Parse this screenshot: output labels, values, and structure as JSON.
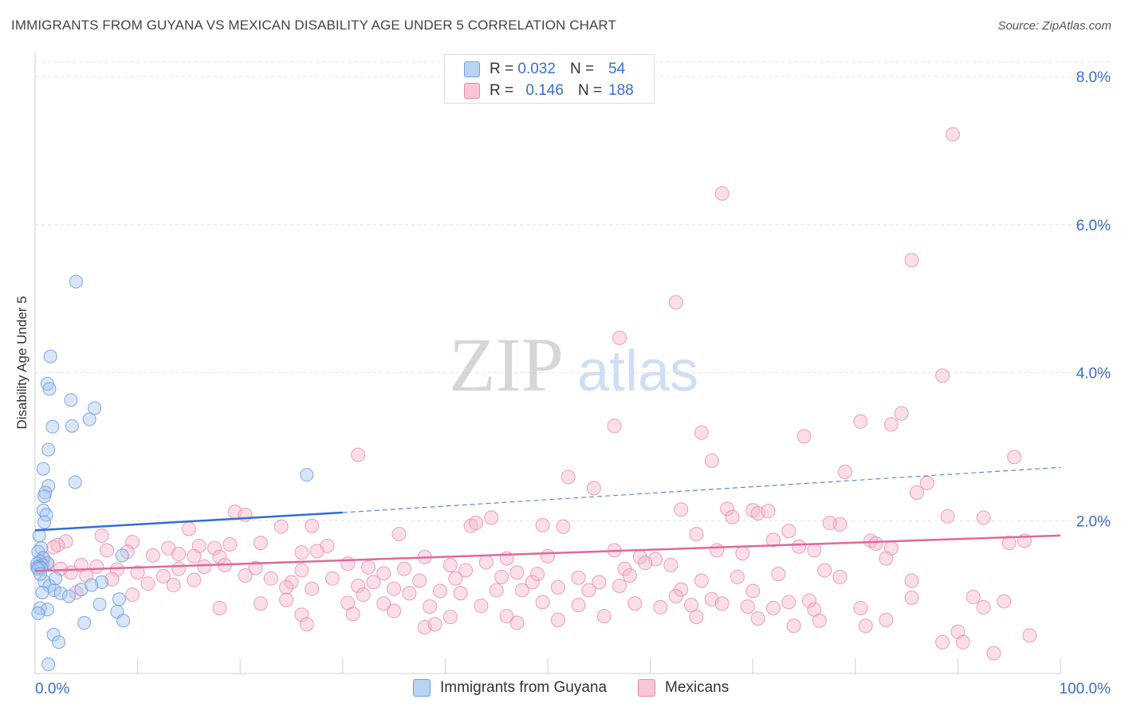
{
  "header": {
    "title": "IMMIGRANTS FROM GUYANA VS MEXICAN DISABILITY AGE UNDER 5 CORRELATION CHART",
    "source": "Source: ZipAtlas.com"
  },
  "watermark": {
    "zip": "ZIP",
    "atlas": "atlas"
  },
  "legend": {
    "rows": [
      {
        "r_label": "R =",
        "r_value": "0.032",
        "n_label": "N =",
        "n_value": "54"
      },
      {
        "r_label": "R =",
        "r_value": "0.146",
        "n_label": "N =",
        "n_value": "188"
      }
    ]
  },
  "colors": {
    "guyana_fill": "#a8c8f0",
    "guyana_stroke": "#6f9fe0",
    "guyana_line": "#2f6fd0",
    "mexican_fill": "#f5b8cc",
    "mexican_stroke": "#e98aa8",
    "mexican_line": "#e0689a",
    "tick_label": "#3a6fc8"
  },
  "chart_data": {
    "type": "scatter",
    "title": "IMMIGRANTS FROM GUYANA VS MEXICAN DISABILITY AGE UNDER 5 CORRELATION CHART",
    "xlabel": "",
    "ylabel": "Disability Age Under 5",
    "xlim": [
      0,
      100
    ],
    "ylim": [
      0,
      8.0
    ],
    "x_tick_labels": [
      "0.0%",
      "100.0%"
    ],
    "y_ticks": [
      2,
      4,
      6,
      8
    ],
    "y_tick_labels": [
      "2.0%",
      "4.0%",
      "6.0%",
      "8.0%"
    ],
    "grid": true,
    "legend_position": "top-center",
    "series": [
      {
        "name": "Immigrants from Guyana",
        "R": 0.032,
        "N": 54,
        "trend": {
          "x0": 0,
          "y0": 1.87,
          "x1": 30,
          "y1": 2.11,
          "dashed_to_x": 100,
          "dashed_to_y": 2.72
        },
        "points": [
          [
            4.0,
            5.23
          ],
          [
            1.5,
            4.22
          ],
          [
            1.2,
            3.85
          ],
          [
            1.4,
            3.78
          ],
          [
            3.5,
            3.63
          ],
          [
            5.8,
            3.52
          ],
          [
            5.3,
            3.37
          ],
          [
            3.6,
            3.28
          ],
          [
            1.7,
            3.27
          ],
          [
            1.3,
            2.96
          ],
          [
            0.8,
            2.7
          ],
          [
            26.5,
            2.62
          ],
          [
            3.9,
            2.52
          ],
          [
            1.3,
            2.47
          ],
          [
            1.0,
            2.38
          ],
          [
            0.9,
            2.33
          ],
          [
            0.8,
            2.14
          ],
          [
            1.1,
            2.08
          ],
          [
            0.9,
            1.98
          ],
          [
            0.4,
            1.8
          ],
          [
            0.6,
            1.63
          ],
          [
            0.3,
            1.58
          ],
          [
            0.8,
            1.5
          ],
          [
            0.5,
            1.45
          ],
          [
            1.2,
            1.43
          ],
          [
            0.2,
            1.42
          ],
          [
            0.7,
            1.4
          ],
          [
            0.4,
            1.38
          ],
          [
            0.2,
            1.37
          ],
          [
            0.6,
            1.36
          ],
          [
            0.3,
            1.35
          ],
          [
            8.5,
            1.53
          ],
          [
            0.9,
            1.18
          ],
          [
            1.4,
            1.12
          ],
          [
            1.9,
            1.06
          ],
          [
            2.5,
            1.02
          ],
          [
            0.7,
            1.03
          ],
          [
            4.5,
            1.07
          ],
          [
            6.5,
            1.17
          ],
          [
            5.5,
            1.13
          ],
          [
            8.2,
            0.94
          ],
          [
            3.3,
            0.98
          ],
          [
            6.3,
            0.87
          ],
          [
            0.5,
            0.82
          ],
          [
            1.2,
            0.8
          ],
          [
            0.3,
            0.75
          ],
          [
            8.0,
            0.77
          ],
          [
            8.6,
            0.65
          ],
          [
            4.8,
            0.62
          ],
          [
            1.8,
            0.46
          ],
          [
            2.3,
            0.36
          ],
          [
            1.3,
            0.06
          ],
          [
            0.5,
            1.28
          ],
          [
            2.0,
            1.22
          ]
        ]
      },
      {
        "name": "Mexicans",
        "R": 0.146,
        "N": 188,
        "trend": {
          "x0": 0,
          "y0": 1.32,
          "x1": 100,
          "y1": 1.8
        },
        "points": [
          [
            89.5,
            7.22
          ],
          [
            67.0,
            6.42
          ],
          [
            85.5,
            5.52
          ],
          [
            62.5,
            4.95
          ],
          [
            57.0,
            4.47
          ],
          [
            88.5,
            3.96
          ],
          [
            80.5,
            3.34
          ],
          [
            83.5,
            3.3
          ],
          [
            84.5,
            3.45
          ],
          [
            56.5,
            3.28
          ],
          [
            65.0,
            3.19
          ],
          [
            75.0,
            3.14
          ],
          [
            31.5,
            2.89
          ],
          [
            66.0,
            2.81
          ],
          [
            95.5,
            2.86
          ],
          [
            79.0,
            2.66
          ],
          [
            87.0,
            2.51
          ],
          [
            52.0,
            2.59
          ],
          [
            54.5,
            2.44
          ],
          [
            86.0,
            2.38
          ],
          [
            63.0,
            2.15
          ],
          [
            67.5,
            2.16
          ],
          [
            70.0,
            2.14
          ],
          [
            70.5,
            2.1
          ],
          [
            71.5,
            2.13
          ],
          [
            19.5,
            2.12
          ],
          [
            20.5,
            2.08
          ],
          [
            44.5,
            2.04
          ],
          [
            68.0,
            2.05
          ],
          [
            89.0,
            2.06
          ],
          [
            92.5,
            2.04
          ],
          [
            49.5,
            1.94
          ],
          [
            51.5,
            1.92
          ],
          [
            42.5,
            1.93
          ],
          [
            43.0,
            1.97
          ],
          [
            24.0,
            1.92
          ],
          [
            27.0,
            1.93
          ],
          [
            15.0,
            1.89
          ],
          [
            78.5,
            1.95
          ],
          [
            77.5,
            1.97
          ],
          [
            73.5,
            1.86
          ],
          [
            35.5,
            1.82
          ],
          [
            6.5,
            1.8
          ],
          [
            64.5,
            1.82
          ],
          [
            72.0,
            1.74
          ],
          [
            81.5,
            1.73
          ],
          [
            3.0,
            1.72
          ],
          [
            2.2,
            1.67
          ],
          [
            1.8,
            1.64
          ],
          [
            9.5,
            1.71
          ],
          [
            13.0,
            1.63
          ],
          [
            16.0,
            1.66
          ],
          [
            17.5,
            1.63
          ],
          [
            19.0,
            1.68
          ],
          [
            22.0,
            1.7
          ],
          [
            28.5,
            1.66
          ],
          [
            7.0,
            1.6
          ],
          [
            9.0,
            1.58
          ],
          [
            11.5,
            1.53
          ],
          [
            14.0,
            1.55
          ],
          [
            15.5,
            1.52
          ],
          [
            18.0,
            1.51
          ],
          [
            26.0,
            1.57
          ],
          [
            27.5,
            1.59
          ],
          [
            38.0,
            1.51
          ],
          [
            44.0,
            1.44
          ],
          [
            46.0,
            1.49
          ],
          [
            50.0,
            1.52
          ],
          [
            56.5,
            1.6
          ],
          [
            59.0,
            1.51
          ],
          [
            60.5,
            1.48
          ],
          [
            62.0,
            1.4
          ],
          [
            66.5,
            1.6
          ],
          [
            69.0,
            1.56
          ],
          [
            74.5,
            1.65
          ],
          [
            76.0,
            1.6
          ],
          [
            82.0,
            1.69
          ],
          [
            83.5,
            1.63
          ],
          [
            95.0,
            1.7
          ],
          [
            96.5,
            1.73
          ],
          [
            83.0,
            1.49
          ],
          [
            59.5,
            1.43
          ],
          [
            57.5,
            1.35
          ],
          [
            49.0,
            1.28
          ],
          [
            47.0,
            1.3
          ],
          [
            42.0,
            1.33
          ],
          [
            40.5,
            1.4
          ],
          [
            36.0,
            1.35
          ],
          [
            34.0,
            1.29
          ],
          [
            32.5,
            1.37
          ],
          [
            30.5,
            1.42
          ],
          [
            26.0,
            1.33
          ],
          [
            21.5,
            1.36
          ],
          [
            18.5,
            1.4
          ],
          [
            16.5,
            1.38
          ],
          [
            14.0,
            1.35
          ],
          [
            10.0,
            1.3
          ],
          [
            8.0,
            1.34
          ],
          [
            6.0,
            1.38
          ],
          [
            4.5,
            1.4
          ],
          [
            3.5,
            1.3
          ],
          [
            2.5,
            1.35
          ],
          [
            1.2,
            1.42
          ],
          [
            0.8,
            1.48
          ],
          [
            5.0,
            1.26
          ],
          [
            7.5,
            1.21
          ],
          [
            12.5,
            1.25
          ],
          [
            15.5,
            1.2
          ],
          [
            20.5,
            1.26
          ],
          [
            23.0,
            1.22
          ],
          [
            25.0,
            1.17
          ],
          [
            29.0,
            1.22
          ],
          [
            33.0,
            1.17
          ],
          [
            37.5,
            1.19
          ],
          [
            41.0,
            1.22
          ],
          [
            45.5,
            1.24
          ],
          [
            48.5,
            1.17
          ],
          [
            53.0,
            1.23
          ],
          [
            55.0,
            1.17
          ],
          [
            58.0,
            1.26
          ],
          [
            65.0,
            1.19
          ],
          [
            68.5,
            1.24
          ],
          [
            72.5,
            1.28
          ],
          [
            77.0,
            1.33
          ],
          [
            78.5,
            1.24
          ],
          [
            85.5,
            1.19
          ],
          [
            11.0,
            1.15
          ],
          [
            13.5,
            1.13
          ],
          [
            24.5,
            1.1
          ],
          [
            27.0,
            1.08
          ],
          [
            31.5,
            1.12
          ],
          [
            35.0,
            1.08
          ],
          [
            39.5,
            1.05
          ],
          [
            41.5,
            1.02
          ],
          [
            45.0,
            1.06
          ],
          [
            47.5,
            1.06
          ],
          [
            51.0,
            1.1
          ],
          [
            54.0,
            1.06
          ],
          [
            57.0,
            1.12
          ],
          [
            63.0,
            1.07
          ],
          [
            70.0,
            1.05
          ],
          [
            4.0,
            1.03
          ],
          [
            32.0,
            1.0
          ],
          [
            36.5,
            1.02
          ],
          [
            62.5,
            0.98
          ],
          [
            66.0,
            0.94
          ],
          [
            73.5,
            0.9
          ],
          [
            75.5,
            0.92
          ],
          [
            85.5,
            0.96
          ],
          [
            91.5,
            0.97
          ],
          [
            94.5,
            0.91
          ],
          [
            22.0,
            0.88
          ],
          [
            24.5,
            0.93
          ],
          [
            30.5,
            0.89
          ],
          [
            34.0,
            0.88
          ],
          [
            38.5,
            0.84
          ],
          [
            43.5,
            0.85
          ],
          [
            49.5,
            0.9
          ],
          [
            53.0,
            0.86
          ],
          [
            58.5,
            0.88
          ],
          [
            61.0,
            0.83
          ],
          [
            64.0,
            0.86
          ],
          [
            67.0,
            0.88
          ],
          [
            69.5,
            0.84
          ],
          [
            72.0,
            0.82
          ],
          [
            76.0,
            0.8
          ],
          [
            80.5,
            0.82
          ],
          [
            92.5,
            0.83
          ],
          [
            18.0,
            0.82
          ],
          [
            26.0,
            0.73
          ],
          [
            31.0,
            0.74
          ],
          [
            35.0,
            0.78
          ],
          [
            40.5,
            0.7
          ],
          [
            46.0,
            0.71
          ],
          [
            51.0,
            0.66
          ],
          [
            55.5,
            0.71
          ],
          [
            64.5,
            0.7
          ],
          [
            70.5,
            0.68
          ],
          [
            76.5,
            0.65
          ],
          [
            83.0,
            0.66
          ],
          [
            26.5,
            0.6
          ],
          [
            38.0,
            0.56
          ],
          [
            47.0,
            0.62
          ],
          [
            74.0,
            0.58
          ],
          [
            81.0,
            0.58
          ],
          [
            90.0,
            0.5
          ],
          [
            97.0,
            0.45
          ],
          [
            88.5,
            0.36
          ],
          [
            90.5,
            0.36
          ],
          [
            93.5,
            0.21
          ],
          [
            39.0,
            0.6
          ],
          [
            9.5,
            1.0
          ]
        ]
      }
    ]
  },
  "bottom_legend": {
    "items": [
      {
        "label": "Immigrants from Guyana"
      },
      {
        "label": "Mexicans"
      }
    ]
  }
}
